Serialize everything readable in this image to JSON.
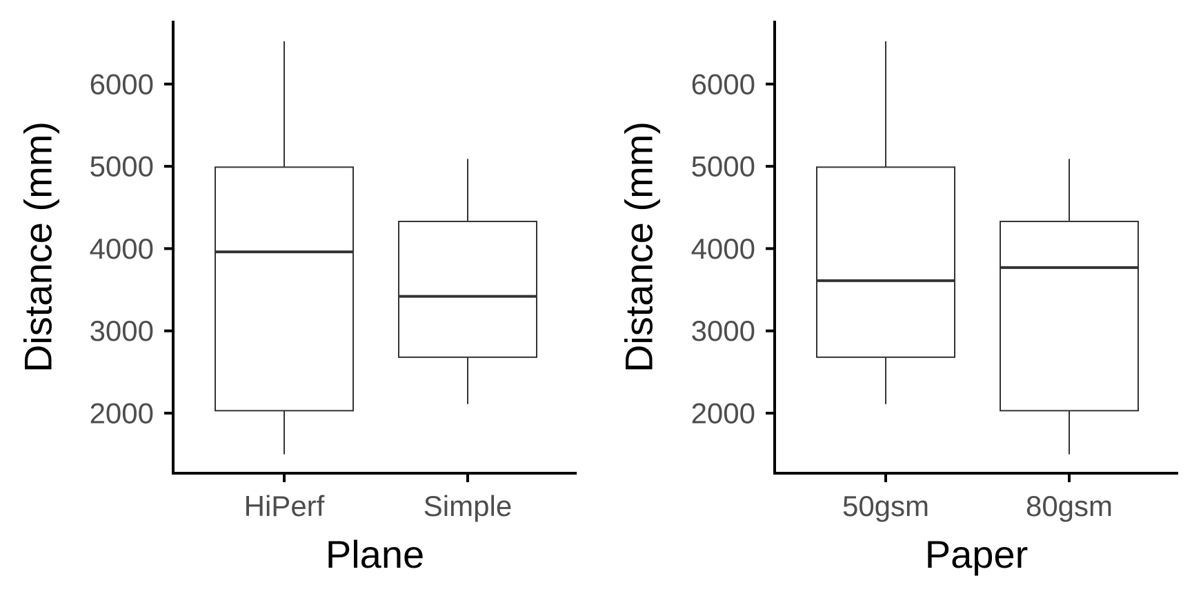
{
  "chart_data": [
    {
      "type": "boxplot",
      "xlabel": "Plane",
      "ylabel": "Distance (mm)",
      "categories": [
        "HiPerf",
        "Simple"
      ],
      "boxes": [
        {
          "category": "HiPerf",
          "min": 1500,
          "q1": 2030,
          "median": 3960,
          "q3": 4990,
          "max": 6520
        },
        {
          "category": "Simple",
          "min": 2110,
          "q1": 2680,
          "median": 3420,
          "q3": 4330,
          "max": 5090
        }
      ],
      "yticks": [
        2000,
        3000,
        4000,
        5000,
        6000
      ],
      "ytick_labels": [
        "2000",
        "3000",
        "4000",
        "5000",
        "6000"
      ],
      "ylim": [
        1270,
        6770
      ],
      "grid": false,
      "legend": "none"
    },
    {
      "type": "boxplot",
      "xlabel": "Paper",
      "ylabel": "Distance (mm)",
      "categories": [
        "50gsm",
        "80gsm"
      ],
      "boxes": [
        {
          "category": "50gsm",
          "min": 2110,
          "q1": 2680,
          "median": 3610,
          "q3": 4990,
          "max": 6520
        },
        {
          "category": "80gsm",
          "min": 1500,
          "q1": 2030,
          "median": 3770,
          "q3": 4330,
          "max": 5090
        }
      ],
      "yticks": [
        2000,
        3000,
        4000,
        5000,
        6000
      ],
      "ytick_labels": [
        "2000",
        "3000",
        "4000",
        "5000",
        "6000"
      ],
      "ylim": [
        1270,
        6770
      ],
      "grid": false,
      "legend": "none"
    }
  ],
  "colors": {
    "axis_line": "#000000",
    "box_stroke": "#333333",
    "box_fill": "#ffffff",
    "tick_text": "#4d4d4d",
    "title_text": "#000000"
  }
}
